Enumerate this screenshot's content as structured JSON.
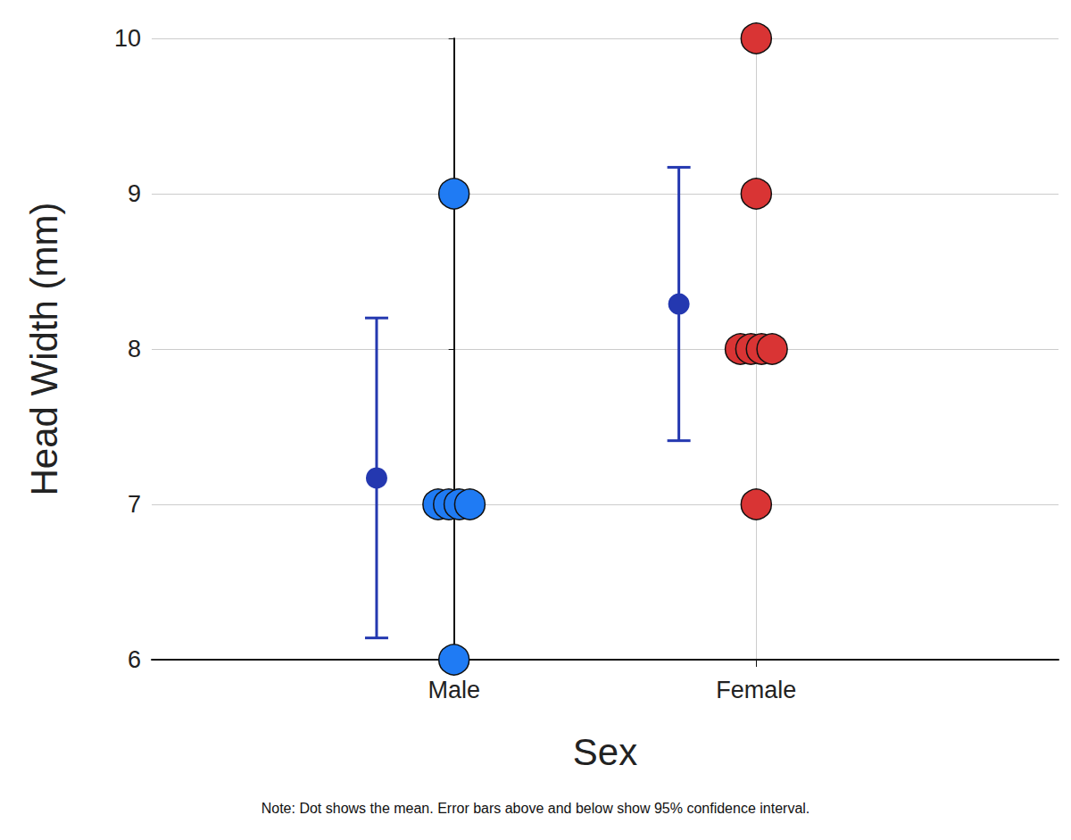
{
  "chart_data": {
    "type": "scatter",
    "x_label": "Sex",
    "y_label": "Head Width (mm)",
    "note": "Note: Dot shows the mean. Error bars above and below show 95% confidence interval.",
    "categories": [
      "Male",
      "Female"
    ],
    "values": [
      [
        9,
        7,
        7,
        7,
        7,
        6
      ],
      [
        10,
        9,
        8,
        8,
        8,
        8,
        7
      ]
    ],
    "colors": [
      "#1f7bf4",
      "#d93434"
    ],
    "means": [
      7.17,
      8.29
    ],
    "ci_lower": [
      6.14,
      7.41
    ],
    "ci_upper": [
      8.2,
      9.17
    ],
    "color": "#2438b0",
    "ylim": [
      6,
      10
    ],
    "yticks": [
      6,
      7,
      8,
      9,
      10
    ],
    "grid": true
  }
}
